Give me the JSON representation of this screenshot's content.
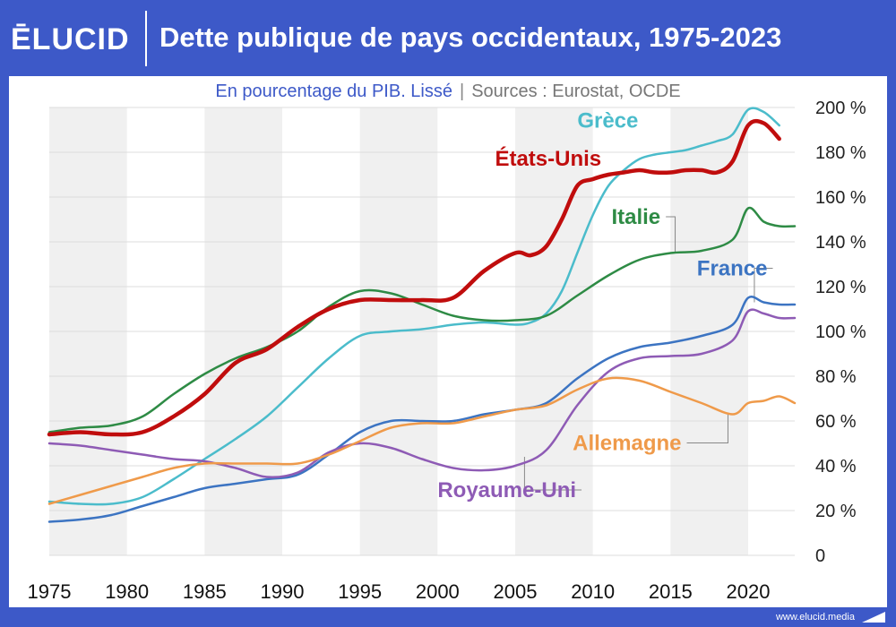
{
  "brand": {
    "logo": "ĒLUCID",
    "footer": "www.elucid.media"
  },
  "header": {
    "title": "Dette publique de pays occidentaux, 1975-2023"
  },
  "subtitle": {
    "main": "En pourcentage du PIB. Lissé",
    "separator": "|",
    "sources": "Sources : Eurostat, OCDE"
  },
  "colors": {
    "background": "#3d59c8",
    "band": "#f0f0f0",
    "grid": "#dddddd"
  },
  "chart_data": {
    "type": "line",
    "title": "Dette publique de pays occidentaux, 1975-2023",
    "subtitle": "En pourcentage du PIB. Lissé",
    "xlim": [
      1975,
      2023
    ],
    "ylim": [
      0,
      200
    ],
    "x_ticks": [
      {
        "value": 1975,
        "label": "1975"
      },
      {
        "value": 1980,
        "label": "1980"
      },
      {
        "value": 1985,
        "label": "1985"
      },
      {
        "value": 1990,
        "label": "1990"
      },
      {
        "value": 1995,
        "label": "1995"
      },
      {
        "value": 2000,
        "label": "2000"
      },
      {
        "value": 2005,
        "label": "2005"
      },
      {
        "value": 2010,
        "label": "2010"
      },
      {
        "value": 2015,
        "label": "2015"
      },
      {
        "value": 2020,
        "label": "2020"
      }
    ],
    "y_ticks": [
      {
        "value": 0,
        "label": "0"
      },
      {
        "value": 20,
        "label": "20 %"
      },
      {
        "value": 40,
        "label": "40 %"
      },
      {
        "value": 60,
        "label": "60 %"
      },
      {
        "value": 80,
        "label": "80 %"
      },
      {
        "value": 100,
        "label": "100 %"
      },
      {
        "value": 120,
        "label": "120 %"
      },
      {
        "value": 140,
        "label": "140 %"
      },
      {
        "value": 160,
        "label": "160 %"
      },
      {
        "value": 180,
        "label": "180 %"
      },
      {
        "value": 200,
        "label": "200 %"
      }
    ],
    "alternating_bands": true,
    "grid": true,
    "legend": "direct labels",
    "series": [
      {
        "name": "Grèce",
        "color": "#4bbccb",
        "width": 2.5,
        "x": [
          1975,
          1977,
          1979,
          1981,
          1983,
          1985,
          1987,
          1989,
          1991,
          1993,
          1995,
          1997,
          1999,
          2001,
          2003,
          2005,
          2006,
          2007,
          2008,
          2009,
          2010,
          2011,
          2012,
          2013,
          2014,
          2015,
          2016,
          2017,
          2018,
          2019,
          2020,
          2021,
          2022
        ],
        "y": [
          24,
          23,
          23,
          26,
          34,
          43,
          52,
          62,
          75,
          88,
          98,
          100,
          101,
          103,
          104,
          103,
          104,
          108,
          118,
          135,
          152,
          165,
          172,
          177,
          179,
          180,
          181,
          183,
          185,
          188,
          199,
          198,
          192
        ]
      },
      {
        "name": "États-Unis",
        "color": "#c00d0d",
        "width": 4.5,
        "x": [
          1975,
          1977,
          1979,
          1981,
          1983,
          1985,
          1987,
          1989,
          1991,
          1993,
          1995,
          1997,
          1999,
          2001,
          2003,
          2005,
          2006,
          2007,
          2008,
          2009,
          2010,
          2011,
          2012,
          2013,
          2014,
          2015,
          2016,
          2017,
          2018,
          2019,
          2020,
          2021,
          2022
        ],
        "y": [
          54,
          55,
          54,
          55,
          62,
          72,
          86,
          92,
          102,
          110,
          114,
          114,
          114,
          115,
          127,
          135,
          134,
          138,
          150,
          165,
          168,
          170,
          171,
          172,
          171,
          171,
          172,
          172,
          171,
          176,
          192,
          193,
          186
        ]
      },
      {
        "name": "Italie",
        "color": "#2e8b45",
        "width": 2.5,
        "x": [
          1975,
          1977,
          1979,
          1981,
          1983,
          1985,
          1987,
          1989,
          1991,
          1993,
          1995,
          1997,
          1999,
          2001,
          2003,
          2005,
          2007,
          2009,
          2011,
          2013,
          2015,
          2017,
          2019,
          2020,
          2021,
          2022,
          2023
        ],
        "y": [
          55,
          57,
          58,
          62,
          72,
          81,
          88,
          93,
          100,
          111,
          118,
          117,
          112,
          107,
          105,
          105,
          107,
          116,
          125,
          132,
          135,
          136,
          141,
          155,
          149,
          147,
          147
        ]
      },
      {
        "name": "France",
        "color": "#3c74c2",
        "width": 2.5,
        "x": [
          1975,
          1977,
          1979,
          1981,
          1983,
          1985,
          1987,
          1989,
          1991,
          1993,
          1995,
          1997,
          1999,
          2001,
          2003,
          2005,
          2007,
          2009,
          2011,
          2013,
          2015,
          2017,
          2019,
          2020,
          2021,
          2022,
          2023
        ],
        "y": [
          15,
          16,
          18,
          22,
          26,
          30,
          32,
          34,
          36,
          45,
          55,
          60,
          60,
          60,
          63,
          65,
          68,
          79,
          88,
          93,
          95,
          98,
          103,
          115,
          113,
          112,
          112
        ]
      },
      {
        "name": "Royaume-Uni",
        "color": "#8e5bb5",
        "width": 2.5,
        "x": [
          1975,
          1977,
          1979,
          1981,
          1983,
          1985,
          1987,
          1989,
          1991,
          1993,
          1995,
          1997,
          1999,
          2001,
          2003,
          2005,
          2007,
          2009,
          2011,
          2013,
          2015,
          2017,
          2019,
          2020,
          2021,
          2022,
          2023
        ],
        "y": [
          50,
          49,
          47,
          45,
          43,
          42,
          39,
          35,
          37,
          46,
          50,
          48,
          43,
          39,
          38,
          40,
          47,
          67,
          82,
          88,
          89,
          90,
          96,
          109,
          108,
          106,
          106
        ]
      },
      {
        "name": "Allemagne",
        "color": "#ef9a4a",
        "width": 2.5,
        "x": [
          1975,
          1977,
          1979,
          1981,
          1983,
          1985,
          1987,
          1989,
          1991,
          1993,
          1995,
          1997,
          1999,
          2001,
          2003,
          2005,
          2007,
          2009,
          2011,
          2013,
          2015,
          2017,
          2019,
          2020,
          2021,
          2022,
          2023
        ],
        "y": [
          23,
          27,
          31,
          35,
          39,
          41,
          41,
          41,
          41,
          45,
          51,
          57,
          59,
          59,
          62,
          65,
          67,
          74,
          79,
          78,
          73,
          68,
          63,
          68,
          69,
          71,
          68
        ]
      }
    ],
    "annotations": [
      {
        "series": "Grèce",
        "label": "Grèce",
        "x": 2009,
        "y": 191,
        "color": "#4bbccb",
        "leader": false
      },
      {
        "series": "États-Unis",
        "label": "États-Unis",
        "x": 2003.7,
        "y": 174,
        "color": "#c00d0d",
        "leader": false
      },
      {
        "series": "Italie",
        "label": "Italie",
        "x": 2011.2,
        "y": 148,
        "color": "#2e8b45",
        "leader": true,
        "point": {
          "x": 2015.3,
          "y": 135
        }
      },
      {
        "series": "France",
        "label": "France",
        "x": 2016.7,
        "y": 125,
        "color": "#3c74c2",
        "leader": true,
        "point": {
          "x": 2020.4,
          "y": 113
        }
      },
      {
        "series": "Royaume-Uni",
        "label": "Royaume-Uni",
        "x": 2000.0,
        "y": 26,
        "color": "#8e5bb5",
        "leader": true,
        "point": {
          "x": 2005.6,
          "y": 44
        }
      },
      {
        "series": "Allemagne",
        "label": "Allemagne",
        "x": 2008.7,
        "y": 47,
        "color": "#ef9a4a",
        "leader": true,
        "point": {
          "x": 2018.7,
          "y": 63
        }
      }
    ]
  }
}
